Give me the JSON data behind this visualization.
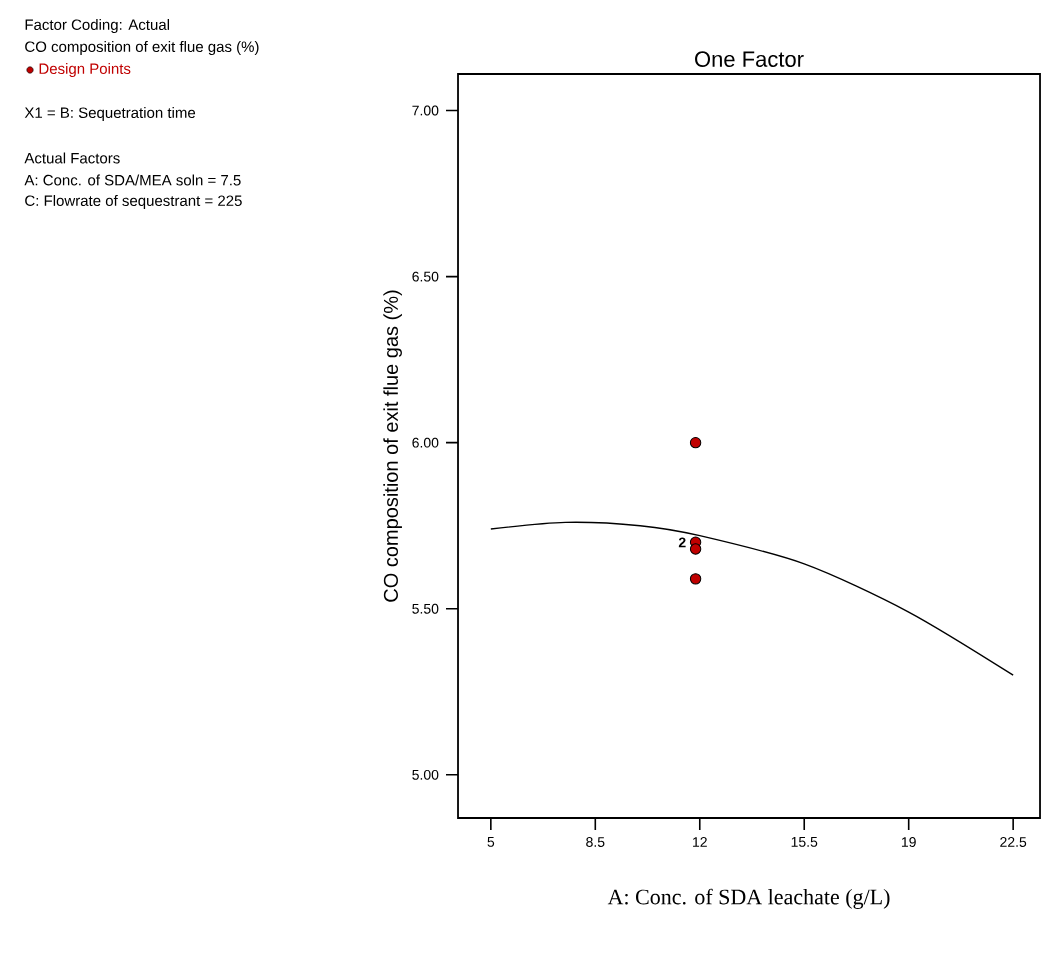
{
  "chart_data": {
    "type": "scatter",
    "title": "One Factor",
    "xlabel": "A: Conc. of SDA leachate (g/L)",
    "ylabel": "CO composition of exit flue gas (%)",
    "xlim": [
      3.9,
      23.4
    ],
    "ylim": [
      4.87,
      7.11
    ],
    "xticks": [
      5,
      8.5,
      12,
      15.5,
      19,
      22.5
    ],
    "yticks": [
      {
        "value": 5,
        "label": "5.00"
      },
      {
        "value": 5.5,
        "label": "5.50"
      },
      {
        "value": 6,
        "label": "6.00"
      },
      {
        "value": 6.5,
        "label": "6.50"
      },
      {
        "value": 7,
        "label": "7.00"
      }
    ],
    "series": [
      {
        "name": "Design Points",
        "marker": "circle",
        "color": "#c00000",
        "x": [
          11.86,
          11.86,
          11.86,
          11.86
        ],
        "values": [
          6.0,
          5.7,
          5.68,
          5.59
        ]
      },
      {
        "type": "line",
        "color": "#000000",
        "line_style": "solid",
        "marker": "none",
        "x": [
          5,
          7.5,
          10,
          12,
          15.5,
          19,
          22.5
        ],
        "values": [
          5.74,
          5.76,
          5.75,
          5.72,
          5.635,
          5.49,
          5.3
        ]
      }
    ],
    "annotations": [
      "Factor Coding: Actual",
      "CO composition of exit flue gas (%)",
      "X1 = B: Sequetration time",
      "Actual Factors",
      "A: Conc. of SDA/MEA soln = 7.5",
      "C: Flowrate of sequestrant = 225",
      {
        "text": "2",
        "x": 11.86,
        "y": 5.7
      }
    ]
  }
}
